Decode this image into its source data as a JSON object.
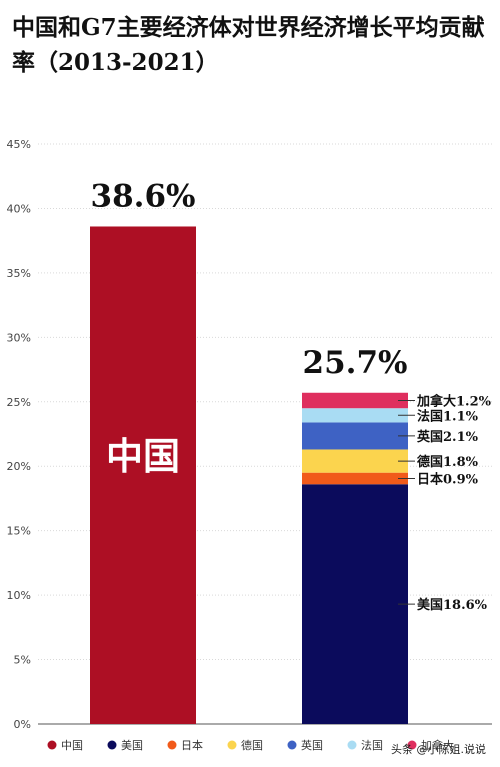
{
  "title": "中国和G7主要经济体对世界经济增长平均贡献率（2013-2021）",
  "watermark": "头条 @小陈姐.说说",
  "chart_data": {
    "type": "bar",
    "stacked": true,
    "ylim": [
      0,
      45
    ],
    "yticks": [
      "0%",
      "5%",
      "10%",
      "15%",
      "20%",
      "25%",
      "30%",
      "35%",
      "40%",
      "45%"
    ],
    "grid": true,
    "legend_position": "bottom",
    "bars": [
      {
        "total_label": "38.6%",
        "inner_label": "中国",
        "segments": [
          {
            "name": "中国",
            "value": 38.6,
            "color": "#ad0f24"
          }
        ]
      },
      {
        "total_label": "25.7%",
        "segments": [
          {
            "name": "美国",
            "value": 18.6,
            "color": "#0b0b5c",
            "label": "美国18.6%"
          },
          {
            "name": "日本",
            "value": 0.9,
            "color": "#f15a1a",
            "label": "日本0.9%"
          },
          {
            "name": "德国",
            "value": 1.8,
            "color": "#fbd44e",
            "label": "德国1.8%"
          },
          {
            "name": "英国",
            "value": 2.1,
            "color": "#3e62c4",
            "label": "英国2.1%"
          },
          {
            "name": "法国",
            "value": 1.1,
            "color": "#a9dcf3",
            "label": "法国1.1%"
          },
          {
            "name": "加拿大",
            "value": 1.2,
            "color": "#df2e5e",
            "label": "加拿大1.2%"
          }
        ]
      }
    ],
    "legend": [
      {
        "name": "中国",
        "color": "#ad0f24"
      },
      {
        "name": "美国",
        "color": "#0b0b5c"
      },
      {
        "name": "日本",
        "color": "#f15a1a"
      },
      {
        "name": "德国",
        "color": "#fbd44e"
      },
      {
        "name": "英国",
        "color": "#3e62c4"
      },
      {
        "name": "法国",
        "color": "#a9dcf3"
      },
      {
        "name": "加拿大",
        "color": "#df2e5e"
      }
    ]
  }
}
